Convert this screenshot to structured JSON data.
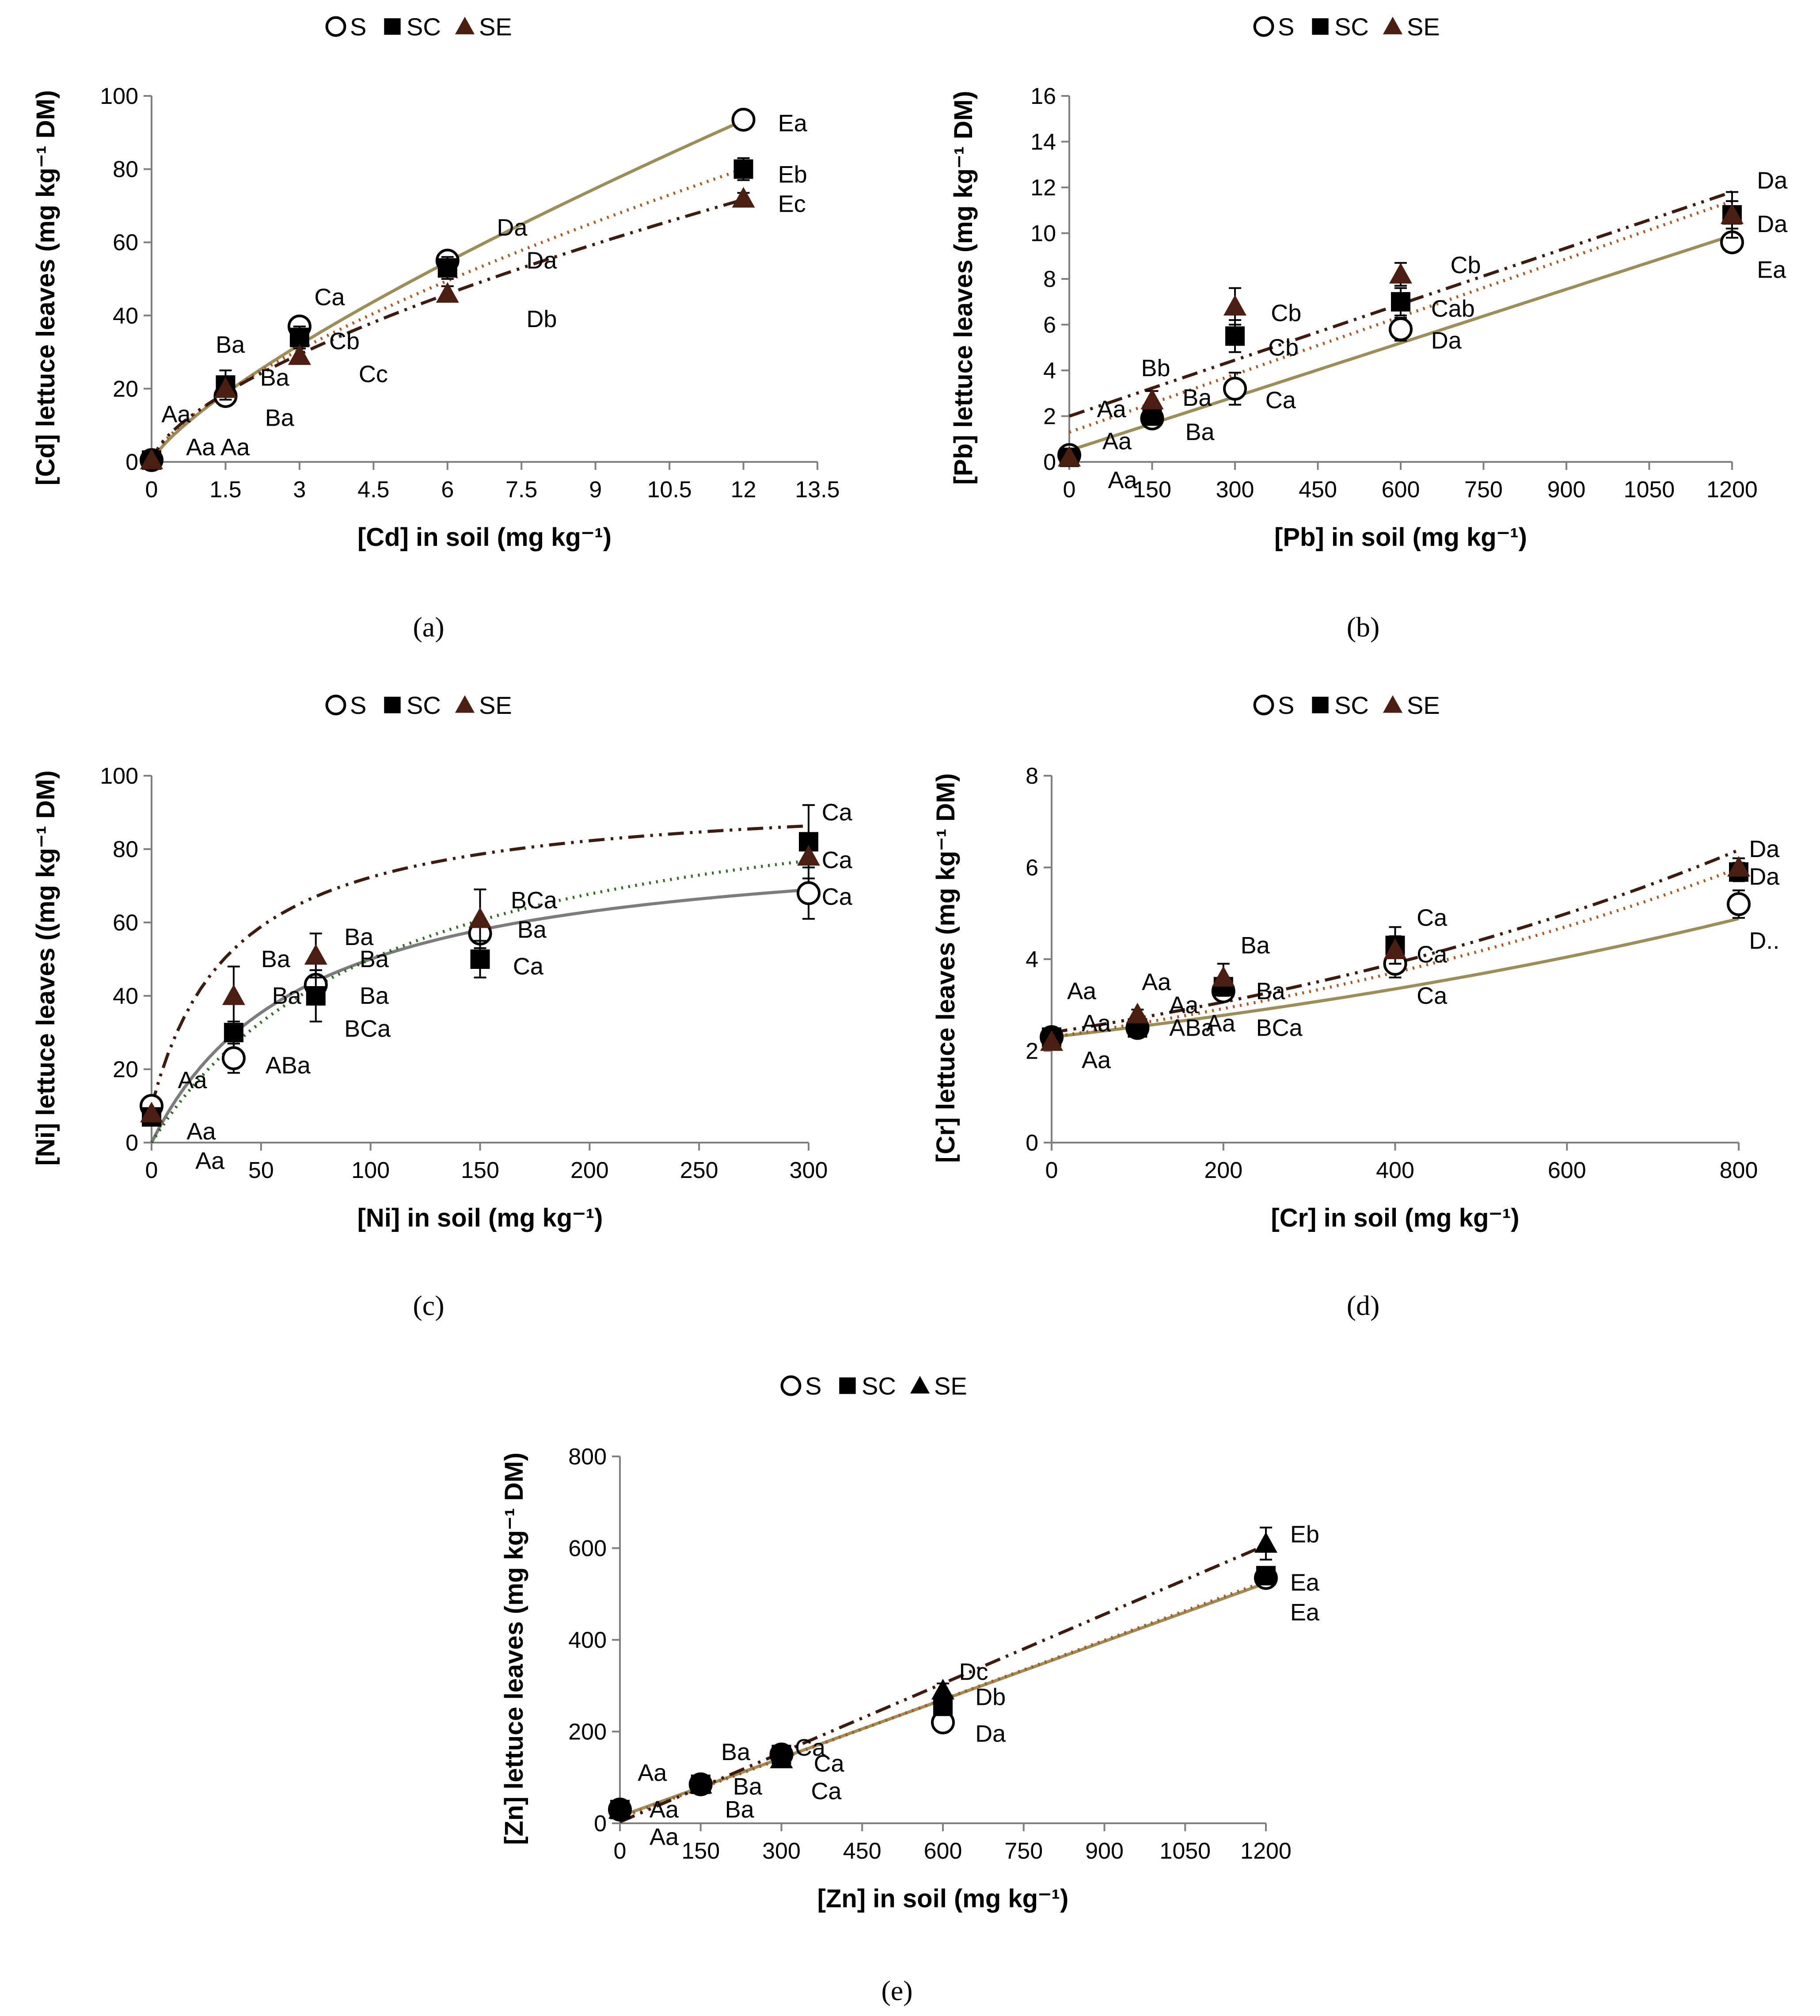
{
  "colors": {
    "S": "#9c8e59",
    "SC": "#b0531c",
    "SE": "#3d1b0f",
    "marker_SE": "#4a1f12",
    "ni_S_line": "#7d7b7b",
    "ni_SC_line": "#2f6a22",
    "axis": "#7f7f7f"
  },
  "chart_data": [
    {
      "id": "a",
      "type": "scatter",
      "caption": "(a)",
      "title": "",
      "xlabel": "[Cd] in soil (mg kg⁻¹)",
      "ylabel": "[Cd] lettuce leaves (mg kg⁻¹ DM)",
      "xlim": [
        0,
        13.5
      ],
      "ylim": [
        0,
        100
      ],
      "xticks": [
        0,
        1.5,
        3,
        4.5,
        6,
        7.5,
        9,
        10.5,
        12,
        13.5
      ],
      "xtick_labels": [
        "0",
        "1.5",
        "3",
        "4.5",
        "6",
        "7.5",
        "9",
        "10.5",
        "12",
        "13.5"
      ],
      "yticks": [
        0,
        20,
        40,
        60,
        80,
        100
      ],
      "ytick_labels": [
        "0",
        "20",
        "40",
        "60",
        "80",
        "100"
      ],
      "legend": [
        "S",
        "SC",
        "SE"
      ],
      "legend_marker_color_SE": "marker_SE",
      "series": [
        {
          "name": "S",
          "x": [
            0,
            1.5,
            3,
            6,
            12
          ],
          "y": [
            0.5,
            18,
            37,
            55,
            93.5
          ],
          "err": [
            0.3,
            2,
            2,
            2,
            1.5
          ],
          "trend": {
            "kind": "power",
            "a": 13.7,
            "b": 0.772
          }
        },
        {
          "name": "SC",
          "x": [
            0,
            1.5,
            3,
            6,
            12
          ],
          "y": [
            0.5,
            21,
            34,
            53,
            80
          ],
          "err": [
            0.3,
            4,
            3,
            3,
            3
          ],
          "trend": {
            "kind": "power",
            "a": 14.3,
            "b": 0.693
          }
        },
        {
          "name": "SE",
          "x": [
            0,
            1.5,
            3,
            6,
            12
          ],
          "y": [
            0.5,
            20,
            29,
            46,
            72
          ],
          "err": [
            0.3,
            2,
            2,
            2,
            1.5
          ],
          "trend": {
            "kind": "power",
            "a": 14.5,
            "b": 0.643
          }
        }
      ],
      "annotations": [
        {
          "text": "Ea",
          "x": 12.7,
          "y": 92.5
        },
        {
          "text": "Eb",
          "x": 12.7,
          "y": 78.5
        },
        {
          "text": "Ec",
          "x": 12.7,
          "y": 70.5
        },
        {
          "text": "Da",
          "x": 7.0,
          "y": 64
        },
        {
          "text": "Da",
          "x": 7.6,
          "y": 55
        },
        {
          "text": "Db",
          "x": 7.6,
          "y": 39
        },
        {
          "text": "Ca",
          "x": 3.3,
          "y": 45
        },
        {
          "text": "Cb",
          "x": 3.6,
          "y": 33
        },
        {
          "text": "Cc",
          "x": 4.2,
          "y": 24
        },
        {
          "text": "Ba",
          "x": 1.3,
          "y": 32
        },
        {
          "text": "Ba",
          "x": 2.2,
          "y": 23
        },
        {
          "text": "Ba",
          "x": 2.3,
          "y": 12
        },
        {
          "text": "Aa",
          "x": 0.2,
          "y": 13
        },
        {
          "text": "Aa",
          "x": 0.7,
          "y": 4
        },
        {
          "text": "Aa",
          "x": 1.4,
          "y": 4
        }
      ]
    },
    {
      "id": "b",
      "type": "scatter",
      "caption": "(b)",
      "title": "",
      "xlabel": "[Pb] in soil (mg kg⁻¹)",
      "ylabel": "[Pb] lettuce leaves (mg kg⁻¹ DM)",
      "xlim": [
        0,
        1200
      ],
      "ylim": [
        0,
        16
      ],
      "xticks": [
        0,
        150,
        300,
        450,
        600,
        750,
        900,
        1050,
        1200
      ],
      "xtick_labels": [
        "0",
        "150",
        "300",
        "450",
        "600",
        "750",
        "900",
        "1050",
        "1200"
      ],
      "yticks": [
        0,
        2,
        4,
        6,
        8,
        10,
        12,
        14,
        16
      ],
      "ytick_labels": [
        "0",
        "2",
        "4",
        "6",
        "8",
        "10",
        "12",
        "14",
        "16"
      ],
      "legend": [
        "S",
        "SC",
        "SE"
      ],
      "series": [
        {
          "name": "S",
          "x": [
            0,
            150,
            300,
            600,
            1200
          ],
          "y": [
            0.3,
            1.9,
            3.2,
            5.8,
            9.6
          ],
          "err": [
            0.1,
            0.2,
            0.7,
            0.5,
            0.3
          ],
          "trend": {
            "kind": "linear",
            "a": 0.5,
            "b": 0.00783
          }
        },
        {
          "name": "SC",
          "x": [
            0,
            150,
            300,
            600,
            1200
          ],
          "y": [
            0.2,
            2.0,
            5.5,
            7.0,
            10.8
          ],
          "err": [
            0.1,
            0.3,
            0.7,
            0.6,
            0.6
          ],
          "trend": {
            "kind": "linear",
            "a": 1.3,
            "b": 0.00842
          }
        },
        {
          "name": "SE",
          "x": [
            0,
            150,
            300,
            600,
            1200
          ],
          "y": [
            0.2,
            2.7,
            6.8,
            8.2,
            10.8
          ],
          "err": [
            0.1,
            0.4,
            0.8,
            0.5,
            1.0
          ],
          "trend": {
            "kind": "linear",
            "a": 2.0,
            "b": 0.00817
          }
        }
      ],
      "annotations": [
        {
          "text": "Da",
          "x": 1245,
          "y": 12.3
        },
        {
          "text": "Da",
          "x": 1245,
          "y": 10.4
        },
        {
          "text": "Ea",
          "x": 1245,
          "y": 8.4
        },
        {
          "text": "Cb",
          "x": 690,
          "y": 8.6
        },
        {
          "text": "Cab",
          "x": 655,
          "y": 6.7
        },
        {
          "text": "Da",
          "x": 655,
          "y": 5.3
        },
        {
          "text": "Cb",
          "x": 365,
          "y": 6.5
        },
        {
          "text": "Cb",
          "x": 360,
          "y": 5.0
        },
        {
          "text": "Ca",
          "x": 355,
          "y": 2.7
        },
        {
          "text": "Bb",
          "x": 130,
          "y": 4.1
        },
        {
          "text": "Ba",
          "x": 205,
          "y": 2.8
        },
        {
          "text": "Ba",
          "x": 210,
          "y": 1.3
        },
        {
          "text": "Aa",
          "x": 50,
          "y": 2.3
        },
        {
          "text": "Aa",
          "x": 60,
          "y": 0.9
        },
        {
          "text": "Aa",
          "x": 70,
          "y": -0.8
        }
      ]
    },
    {
      "id": "c",
      "type": "scatter",
      "caption": "(c)",
      "title": "",
      "xlabel": "[Ni] in soil (mg kg⁻¹)",
      "ylabel": "[Ni] lettuce leaves ((mg kg⁻¹ DM)",
      "xlim": [
        0,
        300
      ],
      "ylim": [
        0,
        100
      ],
      "xticks": [
        0,
        50,
        100,
        150,
        200,
        250,
        300
      ],
      "xtick_labels": [
        "0",
        "50",
        "100",
        "150",
        "200",
        "250",
        "300"
      ],
      "yticks": [
        0,
        20,
        40,
        60,
        80,
        100
      ],
      "ytick_labels": [
        "0",
        "20",
        "40",
        "60",
        "80",
        "100"
      ],
      "legend": [
        "S",
        "SC",
        "SE"
      ],
      "legend_marker_color_SE": "marker_SE",
      "series": [
        {
          "name": "S",
          "x": [
            0,
            37.5,
            75,
            150,
            300
          ],
          "y": [
            10,
            23,
            43,
            57,
            68
          ],
          "err": [
            1.5,
            4,
            4,
            4,
            7
          ],
          "trend": {
            "kind": "sat",
            "max": 85,
            "k": 70
          },
          "trend_color": "ni_S_line"
        },
        {
          "name": "SC",
          "x": [
            0,
            37.5,
            75,
            150,
            300
          ],
          "y": [
            7,
            30,
            40,
            50,
            82
          ],
          "err": [
            1,
            3,
            7,
            5,
            10
          ],
          "trend": {
            "kind": "sat",
            "max": 105,
            "k": 110
          },
          "trend_color": "ni_SC_line"
        },
        {
          "name": "SE",
          "x": [
            0,
            37.5,
            75,
            150,
            300
          ],
          "y": [
            8,
            40,
            51,
            61,
            78
          ],
          "err": [
            1,
            8,
            6,
            8,
            3
          ],
          "trend": {
            "kind": "sat",
            "max": 86,
            "k": 38,
            "c": 10
          }
        }
      ],
      "annotations": [
        {
          "text": "Ca",
          "x": 306,
          "y": 90
        },
        {
          "text": "Ca",
          "x": 306,
          "y": 77
        },
        {
          "text": "Ca",
          "x": 306,
          "y": 67
        },
        {
          "text": "BCa",
          "x": 164,
          "y": 66
        },
        {
          "text": "Ba",
          "x": 167,
          "y": 58
        },
        {
          "text": "Ca",
          "x": 165,
          "y": 48
        },
        {
          "text": "Ba",
          "x": 88,
          "y": 56
        },
        {
          "text": "Ba",
          "x": 95,
          "y": 50
        },
        {
          "text": "Ba",
          "x": 95,
          "y": 40
        },
        {
          "text": "Ba",
          "x": 50,
          "y": 50
        },
        {
          "text": "Ba",
          "x": 55,
          "y": 40
        },
        {
          "text": "BCa",
          "x": 88,
          "y": 31
        },
        {
          "text": "ABa",
          "x": 52,
          "y": 21
        },
        {
          "text": "Aa",
          "x": 12,
          "y": 17
        },
        {
          "text": "Aa",
          "x": 16,
          "y": 3
        },
        {
          "text": "Aa",
          "x": 20,
          "y": -5
        }
      ]
    },
    {
      "id": "d",
      "type": "scatter",
      "caption": "(d)",
      "title": "",
      "xlabel": "[Cr] in soil (mg kg⁻¹)",
      "ylabel": "[Cr] lettuce leaves (mg kg⁻¹ DM)",
      "xlim": [
        0,
        800
      ],
      "ylim": [
        0,
        8
      ],
      "xticks": [
        0,
        200,
        400,
        600,
        800
      ],
      "xtick_labels": [
        "0",
        "200",
        "400",
        "600",
        "800"
      ],
      "yticks": [
        0,
        2,
        4,
        6,
        8
      ],
      "ytick_labels": [
        "0",
        "2",
        "4",
        "6",
        "8"
      ],
      "legend": [
        "S",
        "SC",
        "SE"
      ],
      "series": [
        {
          "name": "S",
          "x": [
            0,
            100,
            200,
            400,
            800
          ],
          "y": [
            2.3,
            2.5,
            3.3,
            3.9,
            5.2
          ],
          "err": [
            0.05,
            0.1,
            0.2,
            0.3,
            0.3
          ],
          "trend": {
            "kind": "power0",
            "a": 2.3,
            "b": 0.00362
          }
        },
        {
          "name": "SC",
          "x": [
            0,
            100,
            200,
            400,
            800
          ],
          "y": [
            2.3,
            2.5,
            3.4,
            4.3,
            5.9
          ],
          "err": [
            0.05,
            0.1,
            0.2,
            0.4,
            0.2
          ],
          "trend": {
            "kind": "power0",
            "a": 2.3,
            "b": 0.0046
          }
        },
        {
          "name": "SE",
          "x": [
            0,
            100,
            200,
            400,
            800
          ],
          "y": [
            2.2,
            2.8,
            3.6,
            4.2,
            6.0
          ],
          "err": [
            0.05,
            0.1,
            0.3,
            0.3,
            0.2
          ],
          "trend": {
            "kind": "power0",
            "a": 2.4,
            "b": 0.0047
          }
        }
      ],
      "annotations": [
        {
          "text": "Da",
          "x": 812,
          "y": 6.4
        },
        {
          "text": "Da",
          "x": 812,
          "y": 5.8
        },
        {
          "text": "D..",
          "x": 812,
          "y": 4.4
        },
        {
          "text": "Ca",
          "x": 425,
          "y": 4.9
        },
        {
          "text": "Ca",
          "x": 425,
          "y": 4.1
        },
        {
          "text": "Ca",
          "x": 425,
          "y": 3.2
        },
        {
          "text": "Ba",
          "x": 220,
          "y": 4.3
        },
        {
          "text": "Ba",
          "x": 238,
          "y": 3.3
        },
        {
          "text": "BCa",
          "x": 238,
          "y": 2.5
        },
        {
          "text": "Aa",
          "x": 105,
          "y": 3.5
        },
        {
          "text": "Aa",
          "x": 137,
          "y": 3.0
        },
        {
          "text": "Aa",
          "x": 180,
          "y": 2.6
        },
        {
          "text": "ABa",
          "x": 137,
          "y": 2.5
        },
        {
          "text": "Aa",
          "x": 18,
          "y": 3.3
        },
        {
          "text": "Aa",
          "x": 35,
          "y": 2.6
        },
        {
          "text": "Aa",
          "x": 35,
          "y": 1.8
        }
      ]
    },
    {
      "id": "e",
      "type": "scatter",
      "caption": "(e)",
      "title": "",
      "xlabel": "[Zn] in soil (mg kg⁻¹)",
      "ylabel": "[Zn] lettuce leaves (mg kg⁻¹ DM)",
      "xlim": [
        0,
        1200
      ],
      "ylim": [
        0,
        800
      ],
      "xticks": [
        0,
        150,
        300,
        450,
        600,
        750,
        900,
        1050,
        1200
      ],
      "xtick_labels": [
        "0",
        "150",
        "300",
        "450",
        "600",
        "750",
        "900",
        "1050",
        "1200"
      ],
      "yticks": [
        0,
        200,
        400,
        600,
        800
      ],
      "ytick_labels": [
        "0",
        "200",
        "400",
        "600",
        "800"
      ],
      "legend": [
        "S",
        "SC",
        "SE"
      ],
      "legend_all_black": true,
      "series": [
        {
          "name": "S",
          "x": [
            0,
            150,
            300,
            600,
            1200
          ],
          "y": [
            30,
            85,
            150,
            220,
            535
          ],
          "err": [
            5,
            8,
            10,
            15,
            10
          ],
          "trend": {
            "kind": "linear",
            "a": 15,
            "b": 0.424
          }
        },
        {
          "name": "SC",
          "x": [
            0,
            150,
            300,
            600,
            1200
          ],
          "y": [
            30,
            85,
            150,
            255,
            540
          ],
          "err": [
            5,
            8,
            10,
            15,
            12
          ],
          "trend": {
            "kind": "linear",
            "a": 12,
            "b": 0.43
          }
        },
        {
          "name": "SE",
          "x": [
            0,
            150,
            300,
            600,
            1200
          ],
          "y": [
            30,
            85,
            140,
            290,
            610
          ],
          "err": [
            5,
            8,
            10,
            15,
            35
          ],
          "trend": {
            "kind": "linear",
            "a": 3,
            "b": 0.503
          }
        }
      ],
      "annotations": [
        {
          "text": "Eb",
          "x": 1245,
          "y": 630
        },
        {
          "text": "Ea",
          "x": 1245,
          "y": 525
        },
        {
          "text": "Ea",
          "x": 1245,
          "y": 460
        },
        {
          "text": "Dc",
          "x": 630,
          "y": 330
        },
        {
          "text": "Db",
          "x": 660,
          "y": 275
        },
        {
          "text": "Da",
          "x": 660,
          "y": 195
        },
        {
          "text": "Ca",
          "x": 325,
          "y": 165
        },
        {
          "text": "Ca",
          "x": 360,
          "y": 130
        },
        {
          "text": "Ca",
          "x": 355,
          "y": 70
        },
        {
          "text": "Ba",
          "x": 188,
          "y": 155
        },
        {
          "text": "Ba",
          "x": 210,
          "y": 80
        },
        {
          "text": "Ba",
          "x": 195,
          "y": 30
        },
        {
          "text": "Aa",
          "x": 33,
          "y": 110
        },
        {
          "text": "Aa",
          "x": 55,
          "y": 30
        },
        {
          "text": "Aa",
          "x": 55,
          "y": -30
        }
      ]
    }
  ]
}
